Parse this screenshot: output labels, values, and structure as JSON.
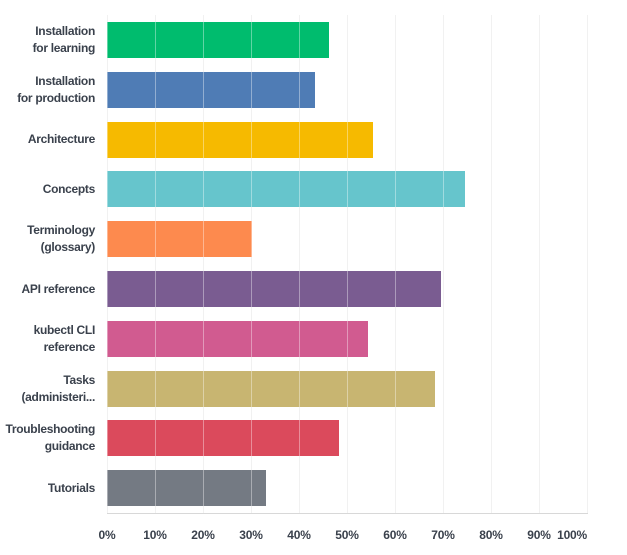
{
  "chart_data": {
    "type": "bar",
    "orientation": "horizontal",
    "title": "",
    "xlabel": "",
    "ylabel": "",
    "categories": [
      "Installation for learning",
      "Installation for production",
      "Architecture",
      "Concepts",
      "Terminology (glossary)",
      "API reference",
      "kubectl CLI reference",
      "Tasks (administeri...",
      "Troubleshooting guidance",
      "Tutorials"
    ],
    "category_display_lines": [
      [
        "Installation",
        "for learning"
      ],
      [
        "Installation",
        "for production"
      ],
      [
        "Architecture"
      ],
      [
        "Concepts"
      ],
      [
        "Terminology",
        "(glossary)"
      ],
      [
        "API reference"
      ],
      [
        "kubectl CLI",
        "reference"
      ],
      [
        "Tasks",
        "(administeri..."
      ],
      [
        "Troubleshooting",
        "guidance"
      ],
      [
        "Tutorials"
      ]
    ],
    "values_percent": [
      46.3,
      43.3,
      55.4,
      74.5,
      30.3,
      69.5,
      54.4,
      68.4,
      48.3,
      33.1
    ],
    "bar_colors": [
      "#00BC6E",
      "#4F7CB5",
      "#F6BA00",
      "#66C5CC",
      "#FD8A4E",
      "#7A5C91",
      "#D15B90",
      "#C8B571",
      "#DB4A5C",
      "#747A83"
    ],
    "xlim": [
      0,
      100
    ],
    "x_tick_labels": [
      "0%",
      "10%",
      "20%",
      "30%",
      "40%",
      "50%",
      "60%",
      "70%",
      "80%",
      "90%",
      "100%"
    ],
    "grid": "vertical gridlines every 10%",
    "legend": "none"
  },
  "colors": {
    "background": "#FFFFFF",
    "label_text": "#3A414C",
    "gridline": "#E8E8E8",
    "axis_line": "#D8D8D8"
  }
}
